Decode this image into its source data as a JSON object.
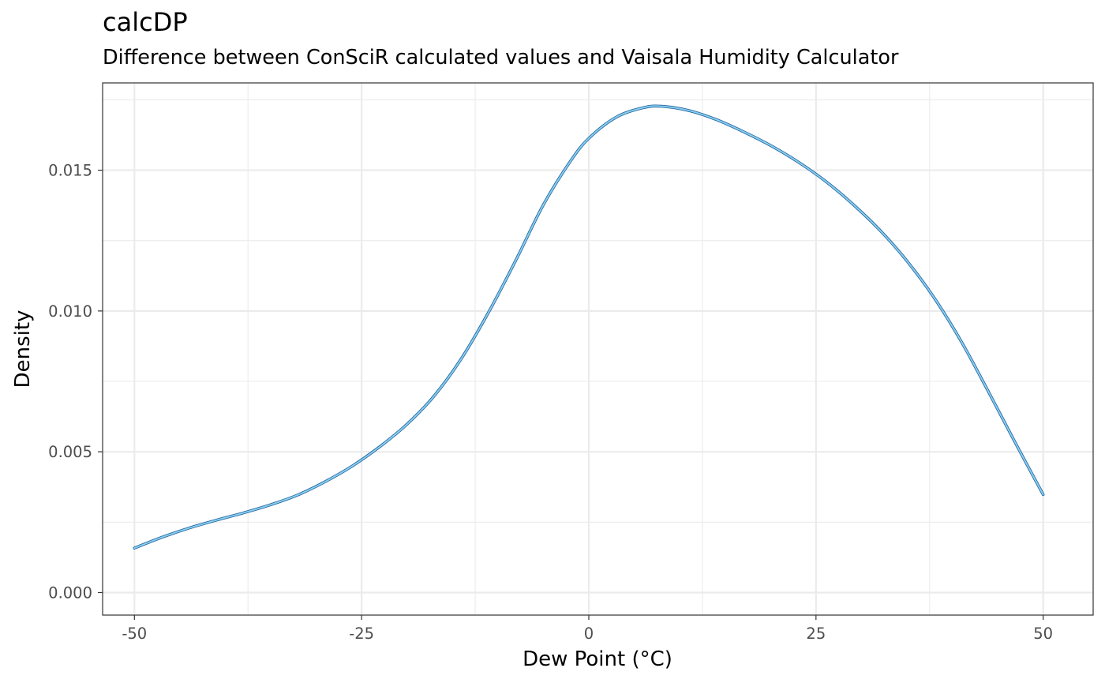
{
  "chart_data": {
    "type": "line",
    "title": "calcDP",
    "subtitle": "Difference between ConSciR calculated values and Vaisala Humidity Calculator",
    "xlabel": "Dew Point (°C)",
    "ylabel": "Density",
    "xlim": [
      -53.5,
      55.5
    ],
    "ylim": [
      -0.0008,
      0.0181
    ],
    "x_ticks": [
      -50,
      -25,
      0,
      25,
      50
    ],
    "x_tick_labels": [
      "-50",
      "-25",
      "0",
      "25",
      "50"
    ],
    "x_minor_ticks": [
      -37.5,
      -12.5,
      12.5,
      37.5
    ],
    "y_ticks": [
      0.0,
      0.005,
      0.01,
      0.015
    ],
    "y_tick_labels": [
      "0.000",
      "0.005",
      "0.010",
      "0.015"
    ],
    "y_minor_ticks": [
      0.0025,
      0.0075,
      0.0125,
      0.0175
    ],
    "grid": true,
    "legend": "none",
    "series": [
      {
        "color": "#1f5fa0",
        "x": [
          -50,
          -47,
          -44,
          -41,
          -38,
          -35,
          -32,
          -29,
          -26,
          -23,
          -20,
          -17,
          -14,
          -11,
          -8,
          -5,
          -2,
          0,
          3,
          6,
          8,
          11,
          14,
          17,
          20,
          23,
          26,
          29,
          32,
          35,
          38,
          41,
          44,
          47,
          50
        ],
        "y": [
          0.00158,
          0.00196,
          0.00229,
          0.00257,
          0.00283,
          0.00312,
          0.00347,
          0.00394,
          0.0045,
          0.00518,
          0.00598,
          0.00699,
          0.00832,
          0.00997,
          0.01182,
          0.01377,
          0.01533,
          0.01613,
          0.01688,
          0.01722,
          0.01727,
          0.01712,
          0.0168,
          0.01637,
          0.01588,
          0.0153,
          0.01462,
          0.01381,
          0.01288,
          0.01178,
          0.01047,
          0.00891,
          0.00712,
          0.00528,
          0.00348
        ]
      },
      {
        "color": "#87ceeb",
        "x": [
          -50,
          -47,
          -44,
          -41,
          -38,
          -35,
          -32,
          -29,
          -26,
          -23,
          -20,
          -17,
          -14,
          -11,
          -8,
          -5,
          -2,
          0,
          3,
          6,
          8,
          11,
          14,
          17,
          20,
          23,
          26,
          29,
          32,
          35,
          38,
          41,
          44,
          47,
          50
        ],
        "y": [
          0.00158,
          0.00196,
          0.00229,
          0.00257,
          0.00283,
          0.00312,
          0.00347,
          0.00394,
          0.0045,
          0.00518,
          0.00598,
          0.00699,
          0.00832,
          0.00997,
          0.01182,
          0.01377,
          0.01533,
          0.01613,
          0.01688,
          0.01722,
          0.01727,
          0.01712,
          0.0168,
          0.01637,
          0.01588,
          0.0153,
          0.01462,
          0.01381,
          0.01288,
          0.01178,
          0.01047,
          0.00891,
          0.00712,
          0.00528,
          0.00348
        ]
      }
    ]
  }
}
